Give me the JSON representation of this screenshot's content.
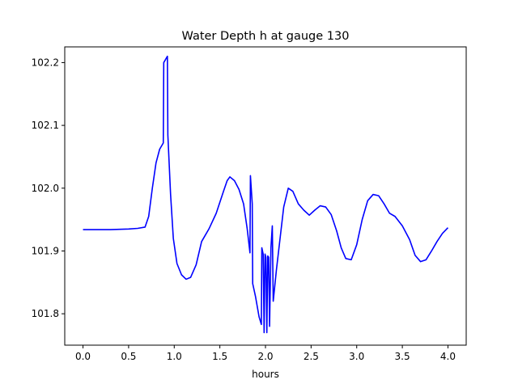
{
  "chart_data": {
    "type": "line",
    "title": "Water Depth h at gauge 130",
    "xlabel": "hours",
    "ylabel": "",
    "xlim": [
      -0.2,
      4.2
    ],
    "ylim": [
      101.75,
      102.225
    ],
    "xticks": [
      0.0,
      0.5,
      1.0,
      1.5,
      2.0,
      2.5,
      3.0,
      3.5,
      4.0
    ],
    "xtick_labels": [
      "0.0",
      "0.5",
      "1.0",
      "1.5",
      "2.0",
      "2.5",
      "3.0",
      "3.5",
      "4.0"
    ],
    "yticks": [
      101.8,
      101.9,
      102.0,
      102.1,
      102.2
    ],
    "ytick_labels": [
      "101.8",
      "101.9",
      "102.0",
      "102.1",
      "102.2"
    ],
    "grid": false,
    "series": [
      {
        "color": "#0000ff",
        "points": [
          [
            0.0,
            101.934
          ],
          [
            0.3,
            101.934
          ],
          [
            0.5,
            101.935
          ],
          [
            0.6,
            101.936
          ],
          [
            0.68,
            101.938
          ],
          [
            0.72,
            101.955
          ],
          [
            0.76,
            102.0
          ],
          [
            0.8,
            102.04
          ],
          [
            0.84,
            102.062
          ],
          [
            0.88,
            102.072
          ],
          [
            0.885,
            102.2
          ],
          [
            0.905,
            102.205
          ],
          [
            0.925,
            102.21
          ],
          [
            0.93,
            102.085
          ],
          [
            0.96,
            101.99
          ],
          [
            0.99,
            101.92
          ],
          [
            1.03,
            101.88
          ],
          [
            1.08,
            101.862
          ],
          [
            1.13,
            101.855
          ],
          [
            1.18,
            101.858
          ],
          [
            1.24,
            101.878
          ],
          [
            1.3,
            101.915
          ],
          [
            1.38,
            101.935
          ],
          [
            1.46,
            101.96
          ],
          [
            1.54,
            101.995
          ],
          [
            1.58,
            102.012
          ],
          [
            1.61,
            102.018
          ],
          [
            1.66,
            102.012
          ],
          [
            1.71,
            101.998
          ],
          [
            1.76,
            101.975
          ],
          [
            1.8,
            101.935
          ],
          [
            1.83,
            101.897
          ],
          [
            1.835,
            102.02
          ],
          [
            1.855,
            101.975
          ],
          [
            1.86,
            101.848
          ],
          [
            1.89,
            101.828
          ],
          [
            1.93,
            101.795
          ],
          [
            1.955,
            101.783
          ],
          [
            1.96,
            101.905
          ],
          [
            1.975,
            101.895
          ],
          [
            1.985,
            101.77
          ],
          [
            1.995,
            101.895
          ],
          [
            2.005,
            101.89
          ],
          [
            2.015,
            101.77
          ],
          [
            2.025,
            101.892
          ],
          [
            2.035,
            101.89
          ],
          [
            2.045,
            101.78
          ],
          [
            2.06,
            101.905
          ],
          [
            2.075,
            101.94
          ],
          [
            2.085,
            101.82
          ],
          [
            2.12,
            101.87
          ],
          [
            2.16,
            101.92
          ],
          [
            2.2,
            101.97
          ],
          [
            2.25,
            102.0
          ],
          [
            2.3,
            101.995
          ],
          [
            2.36,
            101.975
          ],
          [
            2.42,
            101.965
          ],
          [
            2.48,
            101.957
          ],
          [
            2.54,
            101.965
          ],
          [
            2.6,
            101.972
          ],
          [
            2.66,
            101.97
          ],
          [
            2.72,
            101.958
          ],
          [
            2.78,
            101.932
          ],
          [
            2.83,
            101.905
          ],
          [
            2.88,
            101.888
          ],
          [
            2.94,
            101.886
          ],
          [
            3.0,
            101.91
          ],
          [
            3.06,
            101.95
          ],
          [
            3.12,
            101.98
          ],
          [
            3.18,
            101.99
          ],
          [
            3.24,
            101.988
          ],
          [
            3.3,
            101.975
          ],
          [
            3.36,
            101.96
          ],
          [
            3.42,
            101.955
          ],
          [
            3.5,
            101.94
          ],
          [
            3.58,
            101.918
          ],
          [
            3.64,
            101.893
          ],
          [
            3.7,
            101.883
          ],
          [
            3.76,
            101.886
          ],
          [
            3.82,
            101.9
          ],
          [
            3.88,
            101.915
          ],
          [
            3.94,
            101.928
          ],
          [
            4.0,
            101.937
          ]
        ]
      }
    ]
  }
}
